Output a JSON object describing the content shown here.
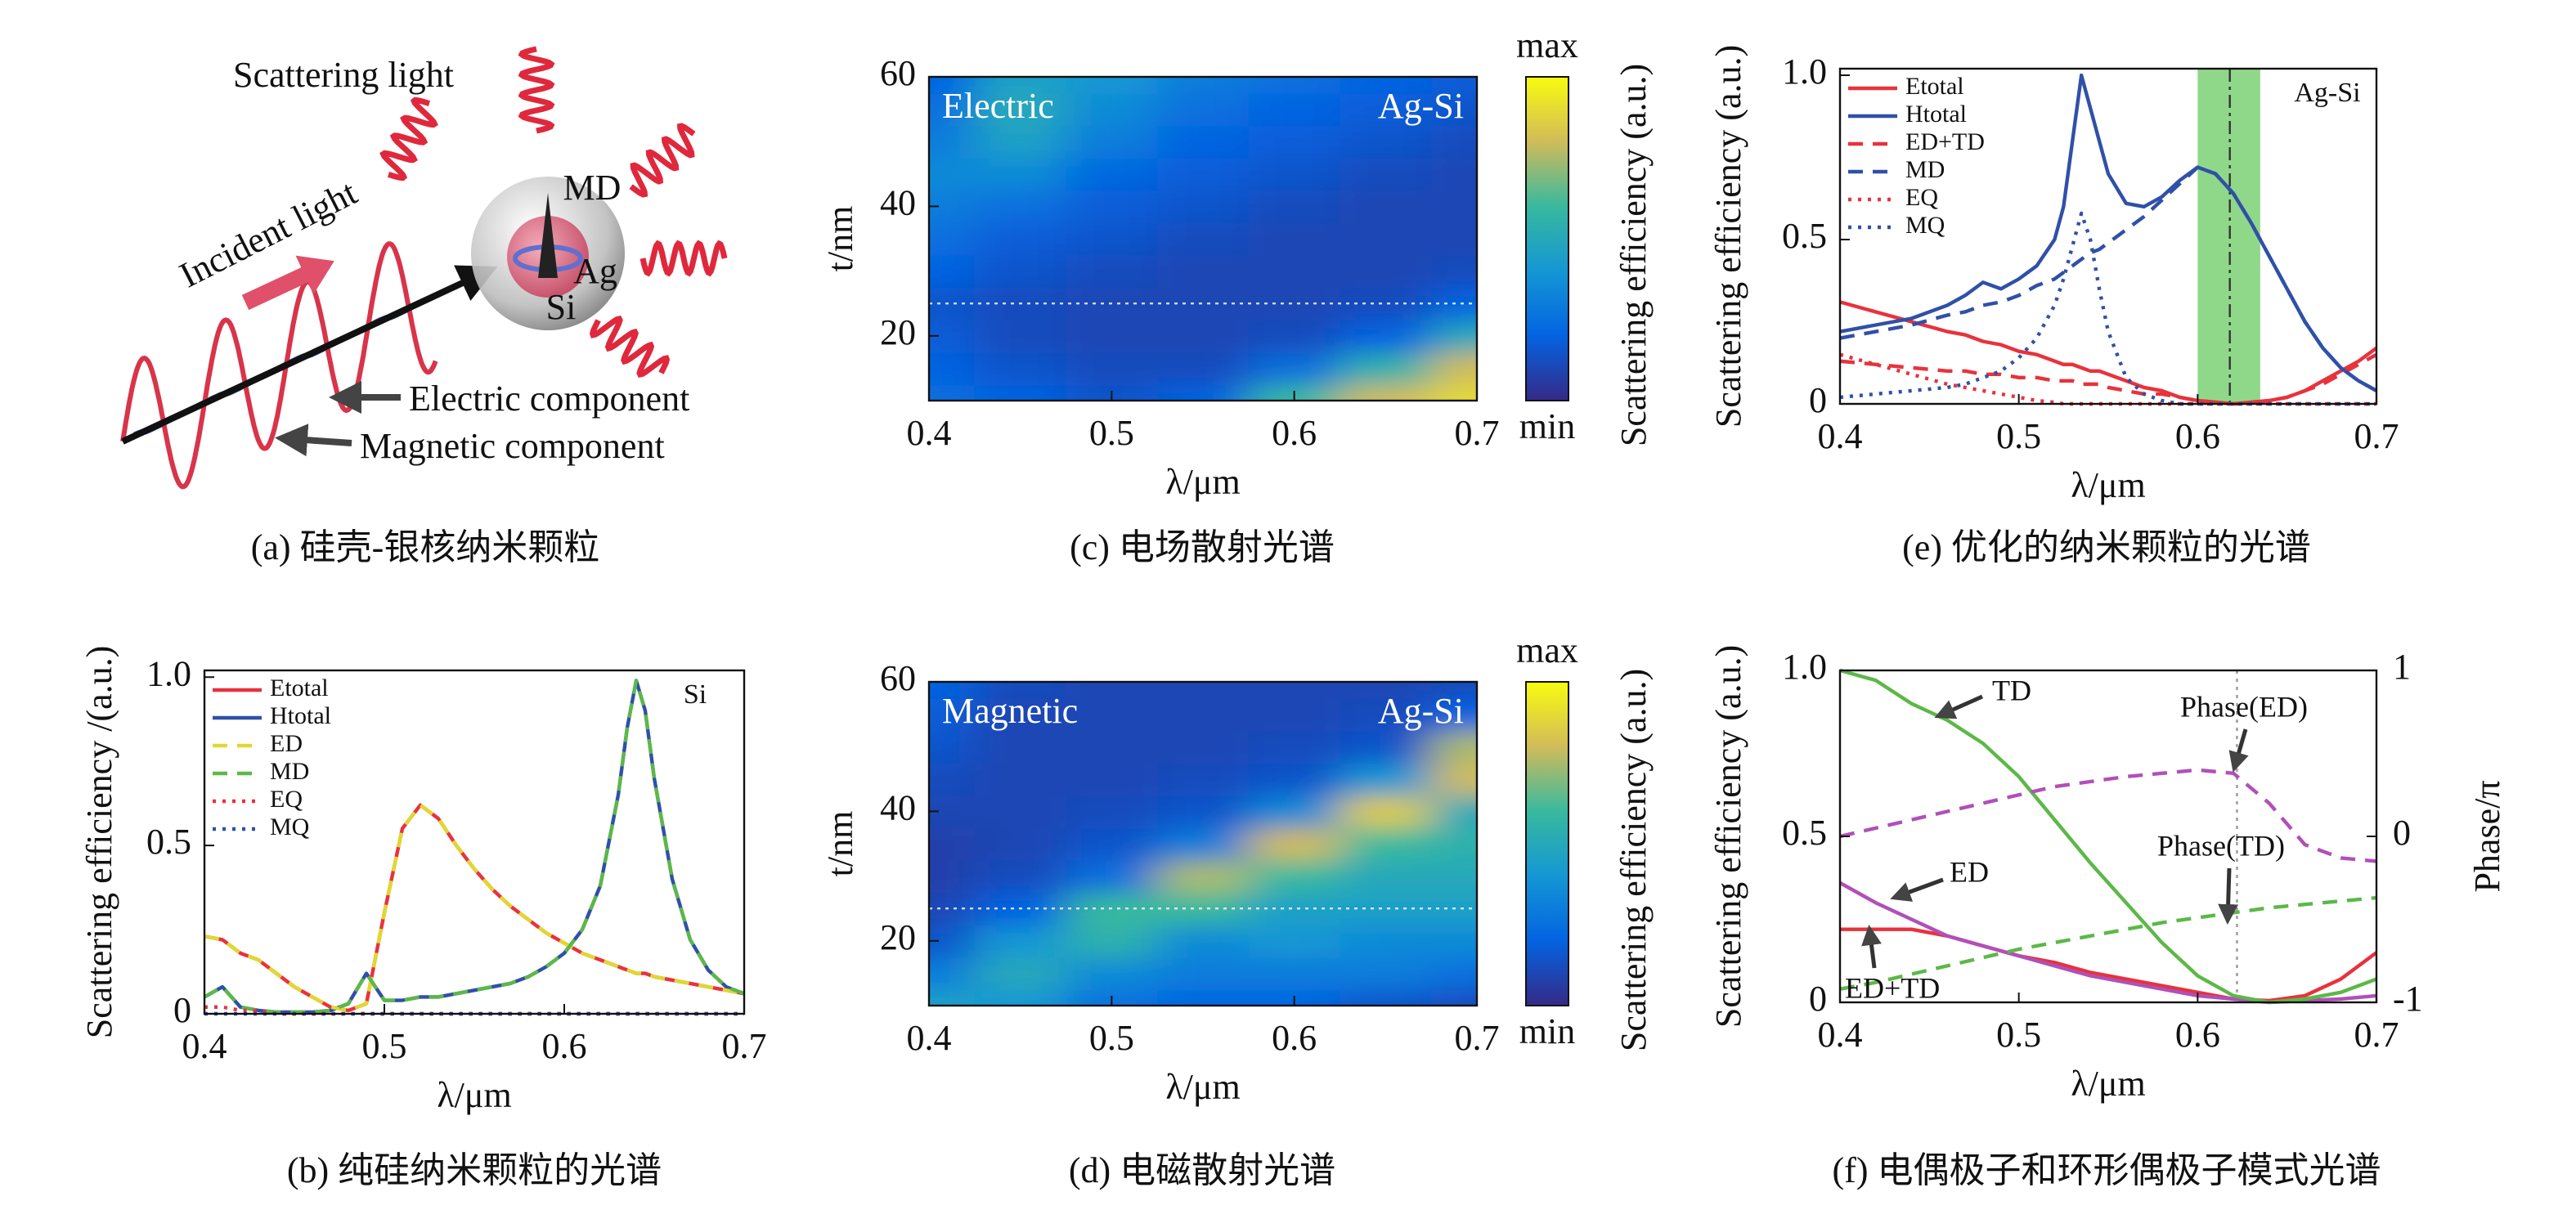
{
  "chart_data": [
    {
      "type": "diagram",
      "labels": [
        "Scattering light",
        "Incident light",
        "MD",
        "Ag",
        "Si",
        "Electric component",
        "Magnetic component"
      ],
      "caption": "(a) 硅壳-银核纳米颗粒"
    },
    {
      "type": "line",
      "caption": "(b) 纯硅纳米颗粒的光谱",
      "xlabel": "λ/μm",
      "ylabel": "Scattering efficiency /(a.u.)",
      "annotation": "Si",
      "legend": "upper left",
      "xlim": [
        0.4,
        0.7
      ],
      "xticks": [
        0.4,
        0.5,
        0.6,
        0.7
      ],
      "ylim": [
        0,
        1.02
      ],
      "yticks": [
        0,
        0.5,
        {
          "value": 1,
          "label": "1.0"
        }
      ],
      "x": [
        0.4,
        0.41,
        0.42,
        0.43,
        0.44,
        0.45,
        0.46,
        0.47,
        0.48,
        0.49,
        0.5,
        0.51,
        0.52,
        0.53,
        0.54,
        0.55,
        0.56,
        0.57,
        0.58,
        0.59,
        0.6,
        0.61,
        0.62,
        0.63,
        0.635,
        0.64,
        0.645,
        0.65,
        0.66,
        0.67,
        0.68,
        0.69,
        0.7
      ],
      "series": [
        {
          "name": "Etotal",
          "color": "#e8323c",
          "dash": "solid",
          "values": [
            0.23,
            0.22,
            0.18,
            0.16,
            0.12,
            0.08,
            0.05,
            0.02,
            0.01,
            0.03,
            0.3,
            0.55,
            0.62,
            0.58,
            0.5,
            0.43,
            0.37,
            0.32,
            0.28,
            0.24,
            0.21,
            0.18,
            0.16,
            0.14,
            0.13,
            0.12,
            0.12,
            0.11,
            0.1,
            0.09,
            0.08,
            0.07,
            0.06
          ]
        },
        {
          "name": "Htotal",
          "color": "#3050a8",
          "dash": "solid",
          "values": [
            0.05,
            0.08,
            0.02,
            0.01,
            0.005,
            0.005,
            0.005,
            0.01,
            0.03,
            0.12,
            0.04,
            0.04,
            0.05,
            0.05,
            0.06,
            0.07,
            0.08,
            0.09,
            0.11,
            0.14,
            0.18,
            0.25,
            0.38,
            0.65,
            0.85,
            0.99,
            0.9,
            0.7,
            0.4,
            0.22,
            0.13,
            0.08,
            0.06
          ]
        },
        {
          "name": "ED",
          "color": "#e0d830",
          "dash": "dashed",
          "values": [
            0.23,
            0.22,
            0.18,
            0.16,
            0.12,
            0.08,
            0.05,
            0.02,
            0.01,
            0.03,
            0.3,
            0.55,
            0.62,
            0.58,
            0.5,
            0.43,
            0.37,
            0.32,
            0.28,
            0.24,
            0.21,
            0.18,
            0.16,
            0.14,
            0.13,
            0.12,
            0.12,
            0.11,
            0.1,
            0.09,
            0.08,
            0.07,
            0.06
          ]
        },
        {
          "name": "MD",
          "color": "#5cb848",
          "dash": "dashed",
          "values": [
            0.05,
            0.08,
            0.02,
            0.01,
            0.005,
            0.005,
            0.005,
            0.01,
            0.03,
            0.12,
            0.04,
            0.04,
            0.05,
            0.05,
            0.06,
            0.07,
            0.08,
            0.09,
            0.11,
            0.14,
            0.18,
            0.25,
            0.38,
            0.65,
            0.85,
            0.99,
            0.9,
            0.7,
            0.4,
            0.22,
            0.13,
            0.08,
            0.06
          ]
        },
        {
          "name": "EQ",
          "color": "#e8323c",
          "dash": "dotted",
          "values": [
            0.02,
            0.02,
            0.01,
            0.01,
            0,
            0,
            0,
            0,
            0,
            0,
            0,
            0,
            0,
            0,
            0,
            0,
            0,
            0,
            0,
            0,
            0,
            0,
            0,
            0,
            0,
            0,
            0,
            0,
            0,
            0,
            0,
            0,
            0
          ]
        },
        {
          "name": "MQ",
          "color": "#3050a8",
          "dash": "dotted",
          "values": [
            0,
            0,
            0,
            0,
            0,
            0,
            0,
            0,
            0,
            0,
            0,
            0,
            0,
            0,
            0,
            0,
            0,
            0,
            0,
            0,
            0,
            0,
            0,
            0,
            0,
            0,
            0,
            0,
            0,
            0,
            0,
            0,
            0
          ]
        }
      ]
    },
    {
      "type": "heatmap",
      "caption": "(c) 电场散射光谱",
      "xlabel": "λ/μm",
      "ylabel": "t/nm",
      "label": "Electric",
      "annotation": "Ag-Si",
      "colorbar_label": "Scattering efficiency (a.u.)",
      "colorbar_max": "max",
      "colorbar_min": "min",
      "colormap": [
        "#352a87",
        "#0363e1",
        "#1497d4",
        "#38b99e",
        "#d1bb59",
        "#f9fb0e"
      ],
      "xlim": [
        0.4,
        0.7
      ],
      "xticks": [
        0.4,
        0.5,
        0.6,
        0.7
      ],
      "ylim": [
        10,
        60
      ],
      "yticks": [
        20,
        40,
        60
      ],
      "reference_y": 25,
      "x": [
        0.4,
        0.45,
        0.5,
        0.55,
        0.6,
        0.65,
        0.7
      ],
      "y": [
        10,
        15,
        20,
        25,
        30,
        35,
        40,
        45,
        50,
        55,
        60
      ],
      "z": [
        [
          0.25,
          0.2,
          0.15,
          0.2,
          0.6,
          0.8,
          0.9
        ],
        [
          0.2,
          0.15,
          0.12,
          0.12,
          0.25,
          0.55,
          0.8
        ],
        [
          0.18,
          0.12,
          0.1,
          0.1,
          0.12,
          0.2,
          0.5
        ],
        [
          0.15,
          0.12,
          0.1,
          0.1,
          0.1,
          0.12,
          0.2
        ],
        [
          0.2,
          0.15,
          0.12,
          0.1,
          0.1,
          0.1,
          0.12
        ],
        [
          0.25,
          0.18,
          0.15,
          0.12,
          0.1,
          0.1,
          0.1
        ],
        [
          0.3,
          0.25,
          0.18,
          0.15,
          0.12,
          0.1,
          0.1
        ],
        [
          0.35,
          0.35,
          0.22,
          0.18,
          0.15,
          0.12,
          0.1
        ],
        [
          0.3,
          0.45,
          0.3,
          0.2,
          0.18,
          0.15,
          0.12
        ],
        [
          0.25,
          0.5,
          0.35,
          0.25,
          0.2,
          0.18,
          0.15
        ],
        [
          0.2,
          0.45,
          0.4,
          0.3,
          0.25,
          0.2,
          0.18
        ]
      ]
    },
    {
      "type": "heatmap",
      "caption": "(d) 电磁散射光谱",
      "xlabel": "λ/μm",
      "ylabel": "t/nm",
      "label": "Magnetic",
      "annotation": "Ag-Si",
      "colorbar_label": "Scattering efficiency (a.u.)",
      "colorbar_max": "max",
      "colorbar_min": "min",
      "colormap": [
        "#352a87",
        "#0363e1",
        "#1497d4",
        "#38b99e",
        "#d1bb59",
        "#f9fb0e"
      ],
      "xlim": [
        0.4,
        0.7
      ],
      "xticks": [
        0.4,
        0.5,
        0.6,
        0.7
      ],
      "ylim": [
        10,
        60
      ],
      "yticks": [
        20,
        40,
        60
      ],
      "reference_y": 25,
      "x": [
        0.4,
        0.45,
        0.5,
        0.55,
        0.6,
        0.65,
        0.7
      ],
      "y": [
        10,
        15,
        20,
        25,
        30,
        35,
        40,
        45,
        50,
        55,
        60
      ],
      "z": [
        [
          0.45,
          0.4,
          0.25,
          0.2,
          0.2,
          0.15,
          0.12
        ],
        [
          0.3,
          0.5,
          0.35,
          0.3,
          0.3,
          0.3,
          0.25
        ],
        [
          0.15,
          0.4,
          0.55,
          0.35,
          0.4,
          0.35,
          0.35
        ],
        [
          0.1,
          0.2,
          0.6,
          0.6,
          0.45,
          0.45,
          0.45
        ],
        [
          0.08,
          0.12,
          0.25,
          0.75,
          0.6,
          0.5,
          0.5
        ],
        [
          0.08,
          0.1,
          0.15,
          0.3,
          0.8,
          0.6,
          0.55
        ],
        [
          0.1,
          0.1,
          0.12,
          0.15,
          0.35,
          0.85,
          0.5
        ],
        [
          0.12,
          0.1,
          0.1,
          0.12,
          0.15,
          0.4,
          0.8
        ],
        [
          0.15,
          0.1,
          0.1,
          0.1,
          0.12,
          0.15,
          0.75
        ],
        [
          0.18,
          0.1,
          0.1,
          0.1,
          0.1,
          0.12,
          0.2
        ],
        [
          0.2,
          0.12,
          0.1,
          0.1,
          0.1,
          0.1,
          0.12
        ]
      ]
    },
    {
      "type": "line",
      "caption": "(e) 优化的纳米颗粒的光谱",
      "xlabel": "λ/μm",
      "ylabel": "Scattering efficiency (a.u.)",
      "annotation": "Ag-Si",
      "legend": "upper left",
      "shaded_range": [
        0.6,
        0.635
      ],
      "shade_color": "#8fd88a",
      "reference_x": 0.618,
      "xlim": [
        0.4,
        0.7
      ],
      "xticks": [
        0.4,
        0.5,
        0.6,
        0.7
      ],
      "ylim": [
        0,
        1.02
      ],
      "yticks": [
        0,
        0.5,
        {
          "value": 1,
          "label": "1.0"
        }
      ],
      "x": [
        0.4,
        0.42,
        0.44,
        0.46,
        0.47,
        0.48,
        0.49,
        0.5,
        0.51,
        0.52,
        0.525,
        0.53,
        0.535,
        0.54,
        0.545,
        0.55,
        0.56,
        0.57,
        0.58,
        0.59,
        0.6,
        0.61,
        0.62,
        0.63,
        0.64,
        0.65,
        0.66,
        0.67,
        0.68,
        0.69,
        0.7
      ],
      "series": [
        {
          "name": "Etotal",
          "color": "#e8323c",
          "dash": "solid",
          "values": [
            0.31,
            0.28,
            0.25,
            0.22,
            0.21,
            0.19,
            0.18,
            0.16,
            0.15,
            0.13,
            0.12,
            0.12,
            0.11,
            0.1,
            0.1,
            0.09,
            0.07,
            0.05,
            0.04,
            0.02,
            0.01,
            0.005,
            0,
            0.005,
            0.01,
            0.02,
            0.04,
            0.07,
            0.1,
            0.13,
            0.17
          ]
        },
        {
          "name": "Htotal",
          "color": "#3050a8",
          "dash": "solid",
          "values": [
            0.22,
            0.24,
            0.26,
            0.3,
            0.33,
            0.37,
            0.35,
            0.38,
            0.42,
            0.5,
            0.6,
            0.8,
            1,
            0.9,
            0.8,
            0.7,
            0.61,
            0.6,
            0.63,
            0.68,
            0.72,
            0.7,
            0.64,
            0.55,
            0.45,
            0.35,
            0.25,
            0.17,
            0.11,
            0.07,
            0.04
          ]
        },
        {
          "name": "ED+TD",
          "color": "#e8323c",
          "dash": "dashed",
          "values": [
            0.13,
            0.12,
            0.11,
            0.1,
            0.1,
            0.09,
            0.09,
            0.08,
            0.08,
            0.07,
            0.07,
            0.07,
            0.06,
            0.06,
            0.06,
            0.05,
            0.04,
            0.03,
            0.03,
            0.02,
            0.01,
            0.005,
            0,
            0.005,
            0.01,
            0.02,
            0.04,
            0.06,
            0.09,
            0.12,
            0.15
          ]
        },
        {
          "name": "MD",
          "color": "#3050a8",
          "dash": "dashed",
          "values": [
            0.2,
            0.22,
            0.24,
            0.27,
            0.28,
            0.3,
            0.31,
            0.33,
            0.36,
            0.38,
            0.4,
            0.42,
            0.44,
            0.46,
            0.47,
            0.49,
            0.53,
            0.57,
            0.62,
            0.67,
            0.72,
            0.7,
            0.64,
            0.55,
            0.45,
            0.35,
            0.25,
            0.17,
            0.11,
            0.07,
            0.04
          ]
        },
        {
          "name": "EQ",
          "color": "#e8323c",
          "dash": "dotted",
          "values": [
            0.15,
            0.12,
            0.09,
            0.06,
            0.05,
            0.04,
            0.03,
            0.02,
            0.01,
            0.005,
            0,
            0,
            0,
            0,
            0,
            0,
            0,
            0,
            0,
            0,
            0,
            0,
            0,
            0,
            0,
            0,
            0,
            0,
            0,
            0,
            0
          ]
        },
        {
          "name": "MQ",
          "color": "#3050a8",
          "dash": "dotted",
          "values": [
            0.02,
            0.03,
            0.04,
            0.05,
            0.06,
            0.08,
            0.1,
            0.14,
            0.2,
            0.3,
            0.38,
            0.48,
            0.58,
            0.5,
            0.35,
            0.22,
            0.08,
            0.03,
            0.01,
            0,
            0,
            0,
            0,
            0,
            0,
            0,
            0,
            0,
            0,
            0,
            0
          ]
        }
      ]
    },
    {
      "type": "line",
      "caption": "(f) 电偶极子和环形偶极子模式光谱",
      "xlabel": "λ/μm",
      "ylabel": "Scattering efficiency (a.u.)",
      "y2label": "Phase/π",
      "legend": "arrows",
      "reference_x": 0.622,
      "xlim": [
        0.4,
        0.7
      ],
      "xticks": [
        0.4,
        0.5,
        0.6,
        0.7
      ],
      "ylim": [
        0,
        1
      ],
      "yticks": [
        0,
        0.5,
        {
          "value": 1,
          "label": "1.0"
        }
      ],
      "y2lim": [
        -1,
        1
      ],
      "y2ticks": [
        -1,
        0,
        1
      ],
      "x": [
        0.4,
        0.42,
        0.44,
        0.46,
        0.48,
        0.5,
        0.52,
        0.54,
        0.56,
        0.58,
        0.6,
        0.62,
        0.64,
        0.66,
        0.68,
        0.7
      ],
      "series": [
        {
          "name": "ED+TD",
          "color": "#e8323c",
          "dash": "solid",
          "values": [
            0.22,
            0.22,
            0.22,
            0.2,
            0.17,
            0.14,
            0.12,
            0.09,
            0.07,
            0.05,
            0.03,
            0.01,
            0.005,
            0.02,
            0.07,
            0.15
          ]
        },
        {
          "name": "ED",
          "color": "#b050b8",
          "dash": "solid",
          "values": [
            0.36,
            0.3,
            0.25,
            0.2,
            0.17,
            0.14,
            0.11,
            0.08,
            0.06,
            0.04,
            0.02,
            0.01,
            0,
            0.005,
            0.01,
            0.02
          ]
        },
        {
          "name": "TD",
          "color": "#5cb848",
          "dash": "solid",
          "values": [
            1,
            0.97,
            0.9,
            0.85,
            0.78,
            0.68,
            0.55,
            0.42,
            0.3,
            0.18,
            0.08,
            0.02,
            0,
            0.01,
            0.03,
            0.07
          ]
        },
        {
          "name": "Phase(ED)",
          "color": "#b050b8",
          "dash": "dashed",
          "axis": "y2",
          "values": [
            0,
            0.05,
            0.1,
            0.15,
            0.2,
            0.25,
            0.3,
            0.33,
            0.36,
            0.38,
            0.4,
            0.38,
            0.2,
            -0.05,
            -0.13,
            -0.15
          ]
        },
        {
          "name": "Phase(TD)",
          "color": "#5cb848",
          "dash": "dashed",
          "axis": "y2",
          "values": [
            -0.92,
            -0.88,
            -0.83,
            -0.78,
            -0.73,
            -0.68,
            -0.64,
            -0.6,
            -0.56,
            -0.52,
            -0.49,
            -0.46,
            -0.43,
            -0.41,
            -0.39,
            -0.37
          ]
        }
      ]
    }
  ]
}
